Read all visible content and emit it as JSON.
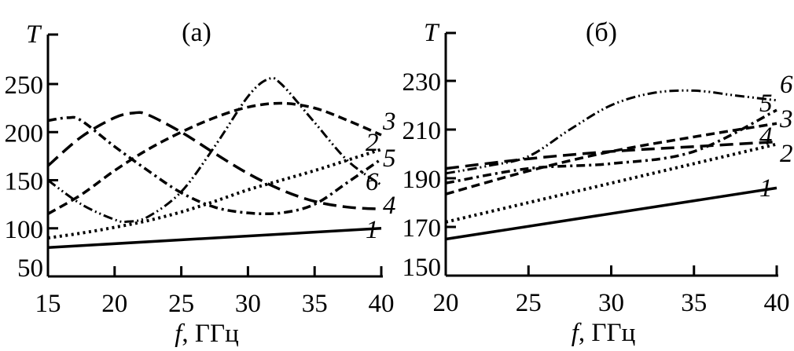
{
  "chart_data": [
    {
      "type": "line",
      "title": "(a)",
      "xlabel_var": "f",
      "xlabel_unit": ", ГГц",
      "ylabel": "T",
      "xlim": [
        15,
        40
      ],
      "ylim": [
        50,
        300
      ],
      "xticks": [
        15,
        20,
        25,
        30,
        35,
        40
      ],
      "yticks": [
        50,
        100,
        150,
        200,
        250
      ],
      "grid": false,
      "series": [
        {
          "name": "1",
          "style": "solid",
          "x": [
            15,
            40
          ],
          "y": [
            80,
            100
          ]
        },
        {
          "name": "2",
          "style": "dotted",
          "x": [
            15,
            17.5,
            20,
            22.5,
            25,
            27.5,
            30,
            32.5,
            35,
            37.5,
            40
          ],
          "y": [
            90,
            95,
            101,
            108,
            117,
            128,
            140,
            150,
            160,
            171,
            182
          ]
        },
        {
          "name": "3",
          "style": "dash",
          "x": [
            15,
            17.5,
            20,
            22.5,
            25,
            27.5,
            30,
            32.5,
            35,
            37.5,
            40
          ],
          "y": [
            115,
            135,
            160,
            182,
            200,
            215,
            226,
            230,
            225,
            212,
            197
          ]
        },
        {
          "name": "4",
          "style": "longdash",
          "x": [
            15,
            17.5,
            20,
            21.5,
            22.5,
            25,
            27.5,
            30,
            32.5,
            35,
            37.5,
            40
          ],
          "y": [
            165,
            195,
            215,
            220,
            218,
            200,
            178,
            157,
            140,
            128,
            122,
            120
          ]
        },
        {
          "name": "5",
          "style": "dashdot",
          "x": [
            15,
            16.5,
            17.5,
            20,
            22.5,
            25,
            27.5,
            30,
            32.5,
            35,
            37.5,
            40
          ],
          "y": [
            212,
            215,
            212,
            185,
            160,
            137,
            122,
            116,
            116,
            125,
            148,
            172
          ]
        },
        {
          "name": "6",
          "style": "dashdotdot",
          "x": [
            15,
            17.5,
            20,
            21,
            22.5,
            25,
            27.5,
            30,
            31.5,
            32.5,
            35,
            37.5,
            40
          ],
          "y": [
            150,
            125,
            109,
            107,
            112,
            138,
            185,
            237,
            255,
            250,
            210,
            170,
            145
          ]
        }
      ]
    },
    {
      "type": "line",
      "title": "(б)",
      "xlabel_var": "f",
      "xlabel_unit": ", ГГц",
      "ylabel": "T",
      "xlim": [
        20,
        40
      ],
      "ylim": [
        150,
        250
      ],
      "xticks": [
        20,
        25,
        30,
        35,
        40
      ],
      "yticks": [
        150,
        170,
        190,
        210,
        230
      ],
      "grid": false,
      "series": [
        {
          "name": "1",
          "style": "solid",
          "x": [
            20,
            40
          ],
          "y": [
            165,
            186
          ]
        },
        {
          "name": "2",
          "style": "dotted",
          "x": [
            20,
            25,
            30,
            35,
            40
          ],
          "y": [
            172,
            180,
            188,
            196,
            204
          ]
        },
        {
          "name": "3",
          "style": "dash",
          "x": [
            20,
            25,
            30,
            35,
            40
          ],
          "y": [
            183.5,
            193,
            201,
            207,
            212.5
          ]
        },
        {
          "name": "4",
          "style": "longdash",
          "x": [
            20,
            25,
            30,
            35,
            40
          ],
          "y": [
            194,
            198,
            201,
            203,
            205
          ]
        },
        {
          "name": "5",
          "style": "dashdot",
          "x": [
            20,
            25,
            30,
            35,
            40
          ],
          "y": [
            188,
            194,
            196,
            201,
            218
          ]
        },
        {
          "name": "6",
          "style": "dashdotdot",
          "x": [
            20,
            22.5,
            25,
            27.5,
            30,
            32.5,
            35,
            37.5,
            40
          ],
          "y": [
            192,
            195,
            199,
            210,
            220,
            225,
            226,
            224,
            222
          ]
        }
      ]
    }
  ]
}
